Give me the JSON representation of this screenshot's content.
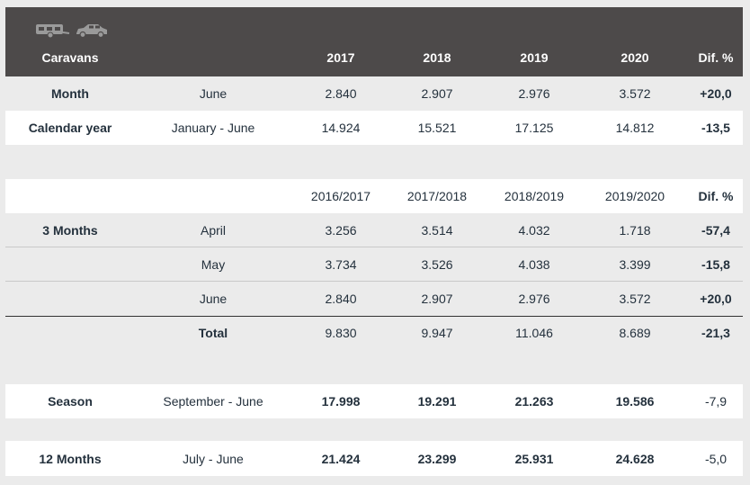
{
  "header": {
    "icons": [
      "caravan-icon",
      "car-icon"
    ],
    "label": "Caravans",
    "years": [
      "2017",
      "2018",
      "2019",
      "2020"
    ],
    "diff": "Dif. %"
  },
  "month_row": {
    "label": "Month",
    "period": "June",
    "values": [
      "2.840",
      "2.907",
      "2.976",
      "3.572"
    ],
    "diff": "+20,0"
  },
  "calendar_row": {
    "label": "Calendar year",
    "period": "January - June",
    "values": [
      "14.924",
      "15.521",
      "17.125",
      "14.812"
    ],
    "diff": "-13,5"
  },
  "season_header": {
    "years": [
      "2016/2017",
      "2017/2018",
      "2018/2019",
      "2019/2020"
    ],
    "diff": "Dif. %"
  },
  "three_months": {
    "label": "3 Months",
    "rows": [
      {
        "period": "April",
        "values": [
          "3.256",
          "3.514",
          "4.032",
          "1.718"
        ],
        "diff": "-57,4"
      },
      {
        "period": "May",
        "values": [
          "3.734",
          "3.526",
          "4.038",
          "3.399"
        ],
        "diff": "-15,8"
      },
      {
        "period": "June",
        "values": [
          "2.840",
          "2.907",
          "2.976",
          "3.572"
        ],
        "diff": "+20,0"
      }
    ],
    "total": {
      "label": "Total",
      "values": [
        "9.830",
        "9.947",
        "11.046",
        "8.689"
      ],
      "diff": "-21,3"
    }
  },
  "season_row": {
    "label": "Season",
    "period": "September - June",
    "values": [
      "17.998",
      "19.291",
      "21.263",
      "19.586"
    ],
    "diff": "-7,9"
  },
  "twelve_row": {
    "label": "12 Months",
    "period": "July - June",
    "values": [
      "21.424",
      "23.299",
      "25.931",
      "24.628"
    ],
    "diff": "-5,0"
  }
}
